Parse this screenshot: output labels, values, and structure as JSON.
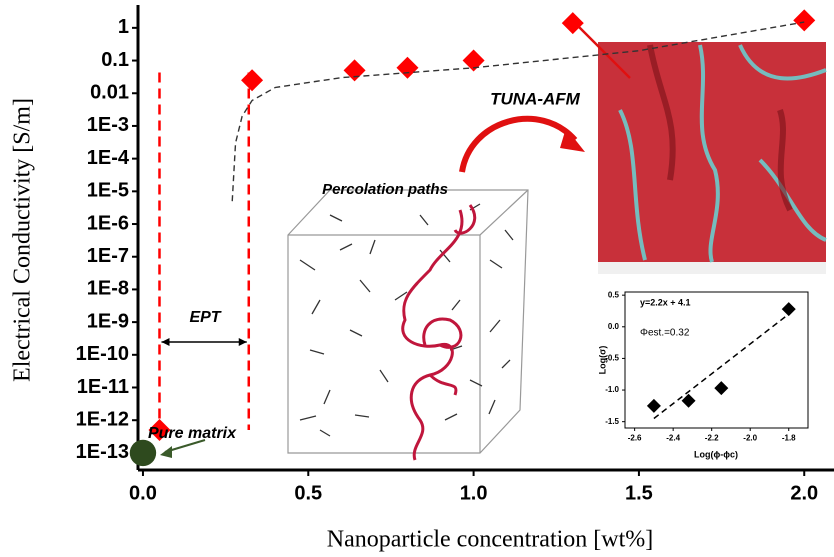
{
  "chart_data": [
    {
      "type": "scatter",
      "x_label": "Nanoparticle concentration [wt%]",
      "y_label": "Electrical Conductivity [S/m]",
      "xlim": [
        -0.015,
        2.09
      ],
      "ylim": [
        3e-14,
        5
      ],
      "log_y": true,
      "xticks": [
        {
          "value": 0,
          "label": "0.0"
        },
        0.5,
        {
          "value": 1,
          "label": "1.0"
        },
        1.5,
        {
          "value": 2,
          "label": "2.0"
        }
      ],
      "yticks": [
        {
          "value": 1e-13,
          "label": "1E-13"
        },
        {
          "value": 1e-12,
          "label": "1E-12"
        },
        {
          "value": 1e-11,
          "label": "1E-11"
        },
        {
          "value": 1e-10,
          "label": "1E-10"
        },
        {
          "value": 1e-09,
          "label": "1E-9"
        },
        {
          "value": 1e-08,
          "label": "1E-8"
        },
        {
          "value": 1e-07,
          "label": "1E-7"
        },
        {
          "value": 1e-06,
          "label": "1E-6"
        },
        {
          "value": 1e-05,
          "label": "1E-5"
        },
        {
          "value": 0.0001,
          "label": "1E-4"
        },
        {
          "value": 0.001,
          "label": "1E-3"
        },
        0.01,
        0.1,
        1
      ],
      "series": [
        {
          "marker": "diamond",
          "color": "#ff0000",
          "x": [
            0.05,
            0.33,
            0.64,
            0.8,
            1.0,
            1.3,
            2.0
          ],
          "values": [
            5e-13,
            0.025,
            0.05,
            0.06,
            0.1,
            1.4,
            1.7
          ]
        },
        {
          "marker": "circle",
          "color": "#2e4a1e",
          "x": [
            0
          ],
          "values": [
            1e-13
          ]
        },
        {
          "marker": "dashed-line",
          "color": "#333333",
          "x": [
            0.27,
            0.28,
            0.3,
            0.33,
            0.4,
            0.6,
            1.0,
            1.5,
            2.0
          ],
          "values": [
            5e-06,
            0.0003,
            0.002,
            0.006,
            0.015,
            0.03,
            0.06,
            0.2,
            1.5
          ]
        }
      ],
      "reference_lines": {
        "color": "#ff0000",
        "x": [
          0.05,
          0.32
        ]
      },
      "annotations": [
        "EPT",
        "Percolation paths",
        "TUNA-AFM",
        "Pure matrix"
      ]
    },
    {
      "type": "scatter",
      "x_label": "Log(ϕ-ϕc)",
      "y_label": "Log(σ)",
      "xlim": [
        -2.65,
        -1.7
      ],
      "ylim": [
        -1.6,
        0.55
      ],
      "xticks": [
        -2.6,
        -2.4,
        -2.2,
        {
          "value": -2,
          "label": "-2.0"
        },
        -1.8
      ],
      "yticks": [
        -1.5,
        {
          "value": -1,
          "label": "-1.0"
        },
        -0.5,
        {
          "value": 0,
          "label": "0.0"
        },
        0.5
      ],
      "series": [
        {
          "marker": "diamond",
          "color": "#000000",
          "x": [
            -2.5,
            -2.32,
            -2.15,
            -1.8
          ],
          "values": [
            -1.25,
            -1.17,
            -0.97,
            0.28
          ]
        },
        {
          "marker": "dashed-line",
          "color": "#000000",
          "x": [
            -2.5,
            -1.8
          ],
          "values": [
            -1.45,
            0.2
          ]
        }
      ],
      "annotations": [
        "y=2.2x + 4.1",
        "Φest.=0.32"
      ]
    }
  ]
}
